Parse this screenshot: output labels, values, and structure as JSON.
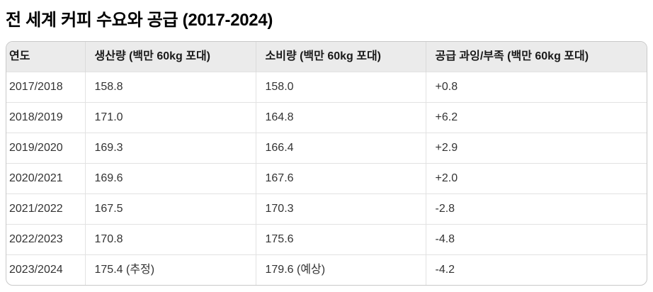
{
  "title": "전 세계 커피 수요와 공급 (2017-2024)",
  "table": {
    "headers": [
      "연도",
      "생산량 (백만 60kg 포대)",
      "소비량 (백만 60kg 포대)",
      "공급 과잉/부족 (백만 60kg 포대)"
    ],
    "rows": [
      [
        "2017/2018",
        "158.8",
        "158.0",
        "+0.8"
      ],
      [
        "2018/2019",
        "171.0",
        "164.8",
        "+6.2"
      ],
      [
        "2019/2020",
        "169.3",
        "166.4",
        "+2.9"
      ],
      [
        "2020/2021",
        "169.6",
        "167.6",
        "+2.0"
      ],
      [
        "2021/2022",
        "167.5",
        "170.3",
        "-2.8"
      ],
      [
        "2022/2023",
        "170.8",
        "175.6",
        "-4.8"
      ],
      [
        "2023/2024",
        "175.4 (추정)",
        "179.6 (예상)",
        "-4.2"
      ]
    ]
  },
  "chart_data": {
    "type": "table",
    "title": "전 세계 커피 수요와 공급 (2017-2024)",
    "categories": [
      "2017/2018",
      "2018/2019",
      "2019/2020",
      "2020/2021",
      "2021/2022",
      "2022/2023",
      "2023/2024"
    ],
    "series": [
      {
        "name": "생산량 (백만 60kg 포대)",
        "values": [
          158.8,
          171.0,
          169.3,
          169.6,
          167.5,
          170.8,
          175.4
        ]
      },
      {
        "name": "소비량 (백만 60kg 포대)",
        "values": [
          158.0,
          164.8,
          166.4,
          167.6,
          170.3,
          175.6,
          179.6
        ]
      },
      {
        "name": "공급 과잉/부족 (백만 60kg 포대)",
        "values": [
          0.8,
          6.2,
          2.9,
          2.0,
          -2.8,
          -4.8,
          -4.2
        ]
      }
    ],
    "annotations": [
      {
        "row": "2023/2024",
        "column": "생산량 (백만 60kg 포대)",
        "note": "추정"
      },
      {
        "row": "2023/2024",
        "column": "소비량 (백만 60kg 포대)",
        "note": "예상"
      }
    ]
  },
  "colors": {
    "header_background": "#ebebeb",
    "outer_border": "#c9c9c9",
    "inner_border": "#e2e2e2",
    "header_text": "#1a1a1a",
    "body_text": "#333333",
    "title_text": "#000000",
    "page_background": "#ffffff"
  }
}
